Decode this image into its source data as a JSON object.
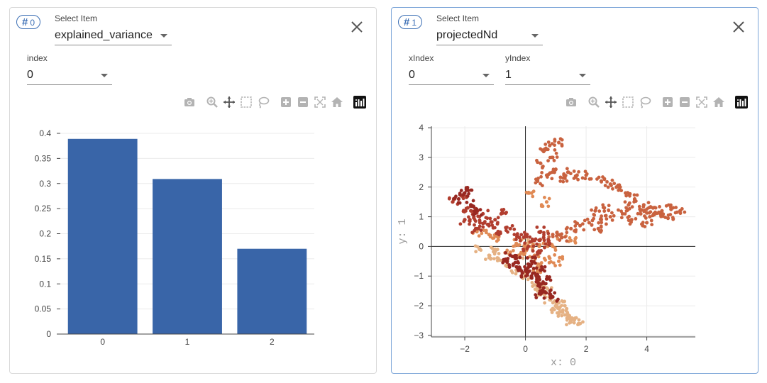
{
  "panels": [
    {
      "badge": "0",
      "select_item": {
        "label": "Select Item",
        "value": "explained_variance"
      },
      "index": {
        "label": "index",
        "value": "0"
      }
    },
    {
      "badge": "1",
      "select_item": {
        "label": "Select Item",
        "value": "projectedNd"
      },
      "xindex": {
        "label": "xIndex",
        "value": "0"
      },
      "yindex": {
        "label": "yIndex",
        "value": "1"
      }
    }
  ],
  "modebar_icons": [
    "camera-icon",
    "zoom-icon",
    "pan-icon",
    "box-select-icon",
    "lasso-icon",
    "zoom-in-icon",
    "zoom-out-icon",
    "autoscale-icon",
    "reset-axes-icon",
    "plotly-logo-icon"
  ],
  "colors": {
    "accent": "#3c6fb5",
    "bar": "#3965a8",
    "scatter": [
      "#e5b183",
      "#e08a55",
      "#c9623f",
      "#b13d2e",
      "#982821"
    ]
  },
  "chart_data": [
    {
      "type": "bar",
      "categories": [
        "0",
        "1",
        "2"
      ],
      "values": [
        0.389,
        0.309,
        0.17
      ],
      "ylim": [
        0,
        0.4
      ],
      "yticks": [
        "0",
        "0.05",
        "0.1",
        "0.15",
        "0.2",
        "0.25",
        "0.3",
        "0.35",
        "0.4"
      ],
      "grid": true
    },
    {
      "type": "scatter",
      "xlabel": "x: 0",
      "ylabel": "y: 1",
      "xlim": [
        -3.1,
        5.6
      ],
      "ylim": [
        -3.05,
        4.05
      ],
      "xticks": [
        "−2",
        "0",
        "2",
        "4"
      ],
      "yticks": [
        "−3",
        "−2",
        "−1",
        "0",
        "1",
        "2",
        "3",
        "4"
      ],
      "grid": true,
      "clusters": [
        {
          "shade": 0,
          "points": [
            [
              -1.5,
              -0.1
            ],
            [
              -1.2,
              -0.3
            ],
            [
              -0.9,
              -0.4
            ],
            [
              -0.6,
              -0.6
            ],
            [
              -0.3,
              -0.8
            ],
            [
              0,
              -1.0
            ],
            [
              0.3,
              -1.3
            ],
            [
              0.6,
              -1.6
            ],
            [
              0.8,
              -1.8
            ],
            [
              1.0,
              -2.0
            ],
            [
              1.2,
              -2.2
            ],
            [
              1.4,
              -2.3
            ],
            [
              1.6,
              -2.45
            ],
            [
              1.75,
              -2.6
            ],
            [
              0.4,
              -1.5
            ],
            [
              0.9,
              -2.1
            ],
            [
              1.3,
              -2.0
            ],
            [
              0.7,
              -1.4
            ],
            [
              -0.2,
              -0.3
            ],
            [
              0.1,
              0.2
            ],
            [
              -1.0,
              -0.1
            ],
            [
              1.5,
              -2.55
            ],
            [
              1.1,
              -1.9
            ]
          ]
        },
        {
          "shade": 1,
          "points": [
            [
              -0.2,
              -0.3
            ],
            [
              0,
              -0.1
            ],
            [
              0.3,
              -0.3
            ],
            [
              0.5,
              -0.6
            ],
            [
              0.8,
              -0.4
            ],
            [
              1.1,
              -0.5
            ],
            [
              0.2,
              0.0
            ],
            [
              0.6,
              0.1
            ],
            [
              1.2,
              0.3
            ],
            [
              0.4,
              -0.8
            ],
            [
              -0.5,
              -0.2
            ],
            [
              0.9,
              0.0
            ],
            [
              1.5,
              0.2
            ],
            [
              -0.9,
              0.3
            ],
            [
              -1.2,
              0.4
            ],
            [
              0.7,
              1.5
            ],
            [
              0.2,
              1.8
            ],
            [
              -1.6,
              0.5
            ],
            [
              -0.3,
              0.1
            ]
          ]
        },
        {
          "shade": 2,
          "points": [
            [
              0.4,
              2.2
            ],
            [
              0.7,
              2.4
            ],
            [
              1.0,
              2.6
            ],
            [
              1.3,
              2.3
            ],
            [
              0.9,
              3.0
            ],
            [
              0.6,
              3.2
            ],
            [
              0.8,
              3.4
            ],
            [
              1.1,
              3.5
            ],
            [
              0.5,
              2.8
            ],
            [
              1.4,
              2.5
            ],
            [
              1.7,
              2.4
            ],
            [
              2.0,
              2.4
            ],
            [
              2.5,
              2.2
            ],
            [
              2.8,
              2.1
            ],
            [
              3.0,
              2.0
            ],
            [
              3.3,
              1.8
            ],
            [
              3.6,
              1.6
            ],
            [
              3.9,
              1.4
            ],
            [
              4.2,
              1.3
            ],
            [
              4.5,
              1.2
            ],
            [
              4.8,
              1.25
            ],
            [
              5.1,
              1.2
            ],
            [
              2.5,
              0.9
            ],
            [
              2.8,
              1.0
            ],
            [
              3.2,
              1.1
            ],
            [
              3.5,
              0.9
            ],
            [
              3.8,
              1.1
            ],
            [
              4.1,
              1.0
            ],
            [
              4.4,
              1.15
            ],
            [
              4.7,
              0.95
            ],
            [
              1.8,
              0.7
            ],
            [
              2.1,
              0.8
            ],
            [
              2.3,
              1.2
            ],
            [
              1.5,
              0.6
            ],
            [
              1.2,
              0.3
            ],
            [
              0.9,
              0.4
            ],
            [
              2.4,
              0.6
            ],
            [
              2.6,
              1.3
            ],
            [
              3.4,
              1.4
            ],
            [
              4.0,
              0.8
            ]
          ]
        },
        {
          "shade": 3,
          "points": [
            [
              -2.4,
              1.5
            ],
            [
              -2.1,
              1.7
            ],
            [
              -1.9,
              1.3
            ],
            [
              -1.7,
              1.0
            ],
            [
              -1.5,
              0.8
            ],
            [
              -1.2,
              0.7
            ],
            [
              -1.0,
              0.9
            ],
            [
              -0.8,
              1.1
            ],
            [
              -0.5,
              0.6
            ],
            [
              -0.2,
              0.3
            ],
            [
              0.1,
              0.0
            ],
            [
              0.3,
              0.2
            ],
            [
              0.6,
              0.3
            ],
            [
              -1.8,
              1.2
            ],
            [
              -1.4,
              1.1
            ],
            [
              -0.9,
              0.5
            ],
            [
              0.4,
              -0.2
            ],
            [
              0.8,
              0.1
            ],
            [
              -2.0,
              0.9
            ],
            [
              -1.6,
              0.6
            ],
            [
              0.0,
              0.4
            ],
            [
              0.5,
              0.5
            ]
          ]
        },
        {
          "shade": 4,
          "points": [
            [
              -0.6,
              -0.5
            ],
            [
              -0.4,
              -0.6
            ],
            [
              -0.2,
              -0.7
            ],
            [
              0.0,
              -0.8
            ],
            [
              0.2,
              -1.0
            ],
            [
              0.4,
              -1.2
            ],
            [
              0.6,
              -1.4
            ],
            [
              0.8,
              -1.6
            ],
            [
              -0.3,
              -0.4
            ],
            [
              0.1,
              -0.6
            ],
            [
              0.3,
              -0.9
            ],
            [
              -0.5,
              -0.3
            ],
            [
              -0.1,
              -0.9
            ],
            [
              0.5,
              -0.8
            ],
            [
              0.7,
              -1.1
            ],
            [
              -2.0,
              1.8
            ],
            [
              -1.8,
              1.4
            ],
            [
              -2.2,
              1.6
            ],
            [
              -1.6,
              1.2
            ],
            [
              -1.9,
              1.9
            ],
            [
              0.5,
              -1.6
            ],
            [
              0.9,
              -1.7
            ],
            [
              0.2,
              -0.5
            ]
          ]
        }
      ]
    }
  ]
}
